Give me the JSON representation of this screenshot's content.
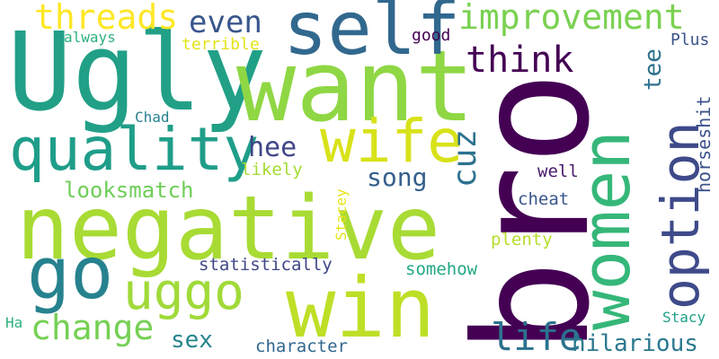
{
  "words": [
    {
      "text": "bro",
      "color": "#440154"
    },
    {
      "text": "Ugly",
      "color": "#21a087"
    },
    {
      "text": "want",
      "color": "#8fd744"
    },
    {
      "text": "negative",
      "color": "#a8db34"
    },
    {
      "text": "women",
      "color": "#35b779"
    },
    {
      "text": "self",
      "color": "#31688e"
    },
    {
      "text": "win",
      "color": "#bddf26"
    },
    {
      "text": "quality",
      "color": "#1f9e89"
    },
    {
      "text": "go",
      "color": "#26828e"
    },
    {
      "text": "option",
      "color": "#3e4a89"
    },
    {
      "text": "wife",
      "color": "#d8e219"
    },
    {
      "text": "improvement",
      "color": "#7ad151"
    },
    {
      "text": "uggo",
      "color": "#a0da39"
    },
    {
      "text": "threads",
      "color": "#fde725"
    },
    {
      "text": "change",
      "color": "#75d054"
    },
    {
      "text": "even",
      "color": "#39568c"
    },
    {
      "text": "think",
      "color": "#440154"
    },
    {
      "text": "life",
      "color": "#2c728e"
    },
    {
      "text": "hilarious",
      "color": "#2a788e"
    },
    {
      "text": "cuz",
      "color": "#2c728e"
    },
    {
      "text": "tee",
      "color": "#2d708e"
    },
    {
      "text": "horseshit",
      "color": "#3b528b"
    },
    {
      "text": "song",
      "color": "#355f8d"
    },
    {
      "text": "hee",
      "color": "#404688"
    },
    {
      "text": "sex",
      "color": "#25858e"
    },
    {
      "text": "looksmatch",
      "color": "#6ece58"
    },
    {
      "text": "statistically",
      "color": "#3f4788"
    },
    {
      "text": "somehow",
      "color": "#22a785"
    },
    {
      "text": "character",
      "color": "#31688e"
    },
    {
      "text": "likely",
      "color": "#a5db36"
    },
    {
      "text": "well",
      "color": "#48186a"
    },
    {
      "text": "cheat",
      "color": "#39568c"
    },
    {
      "text": "plenty",
      "color": "#b5de2b"
    },
    {
      "text": "Stacey",
      "color": "#e5e419"
    },
    {
      "text": "terrible",
      "color": "#e2e418"
    },
    {
      "text": "always",
      "color": "#2db27d"
    },
    {
      "text": "good",
      "color": "#440154"
    },
    {
      "text": "Plus",
      "color": "#3b528b"
    },
    {
      "text": "Chad",
      "color": "#26828e"
    },
    {
      "text": "Stacy",
      "color": "#1fa088"
    },
    {
      "text": "Ha",
      "color": "#2db27d"
    }
  ]
}
